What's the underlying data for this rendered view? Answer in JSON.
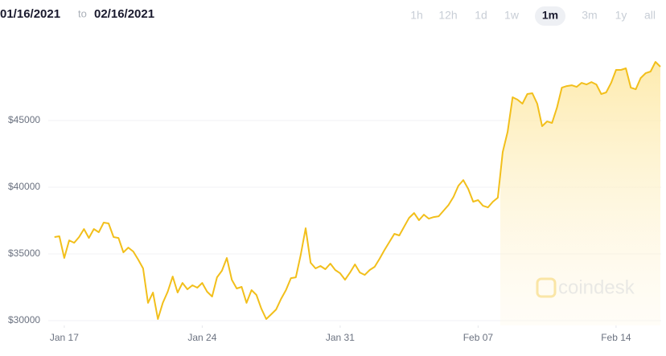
{
  "header": {
    "date_from": "01/16/2021",
    "to": "to",
    "date_to": "02/16/2021",
    "ranges": [
      "1h",
      "12h",
      "1d",
      "1w",
      "1m",
      "3m",
      "1y",
      "all"
    ],
    "selected": 4
  },
  "chart_data": {
    "type": "line",
    "watermark": "coindesk",
    "grid": true,
    "xlim": [
      16.31,
      47.29
    ],
    "ylim": [
      29640,
      51390
    ],
    "xticks": [
      {
        "value": 17,
        "label": "Jan 17"
      },
      {
        "value": 24,
        "label": "Jan 24"
      },
      {
        "value": 31,
        "label": "Jan 31"
      },
      {
        "value": 38,
        "label": "Feb 07"
      },
      {
        "value": 45,
        "label": "Feb 14"
      }
    ],
    "yticks": [
      {
        "value": 30000,
        "label": "$30000"
      },
      {
        "value": 35000,
        "label": "$35000"
      },
      {
        "value": 40000,
        "label": "$40000"
      },
      {
        "value": 45000,
        "label": "$45000"
      }
    ],
    "x": [
      16.5,
      16.75,
      17,
      17.25,
      17.5,
      17.75,
      18,
      18.25,
      18.5,
      18.75,
      19,
      19.25,
      19.5,
      19.75,
      20,
      20.25,
      20.5,
      20.75,
      21,
      21.25,
      21.5,
      21.75,
      22,
      22.25,
      22.5,
      22.75,
      23,
      23.25,
      23.5,
      23.75,
      24,
      24.25,
      24.5,
      24.75,
      25,
      25.25,
      25.5,
      25.75,
      26,
      26.25,
      26.5,
      26.75,
      27,
      27.25,
      27.5,
      27.75,
      28,
      28.25,
      28.5,
      28.75,
      29,
      29.25,
      29.5,
      29.75,
      30,
      30.25,
      30.5,
      30.75,
      31,
      31.25,
      31.5,
      31.75,
      32,
      32.25,
      32.5,
      32.75,
      33,
      33.25,
      33.5,
      33.75,
      34,
      34.25,
      34.5,
      34.75,
      35,
      35.25,
      35.5,
      35.75,
      36,
      36.25,
      36.5,
      36.75,
      37,
      37.25,
      37.5,
      37.75,
      38,
      38.25,
      38.5,
      38.75,
      39,
      39.25,
      39.5,
      39.75,
      40,
      40.25,
      40.5,
      40.75,
      41,
      41.25,
      41.5,
      41.75,
      42,
      42.25,
      42.5,
      42.75,
      43,
      43.25,
      43.5,
      43.75,
      44,
      44.25,
      44.5,
      44.75,
      45,
      45.25,
      45.5,
      45.75,
      46,
      46.25,
      46.5,
      46.75,
      47,
      47.25
    ],
    "series": [
      {
        "color": "#f2bf1b",
        "values": [
          36270,
          36330,
          34700,
          36020,
          35840,
          36270,
          36870,
          36200,
          36870,
          36630,
          37350,
          37290,
          36270,
          36200,
          35120,
          35480,
          35180,
          34580,
          33920,
          31330,
          32110,
          30120,
          31330,
          32170,
          33310,
          32110,
          32830,
          32350,
          32650,
          32470,
          32830,
          32170,
          31810,
          33250,
          33740,
          34700,
          33070,
          32410,
          32530,
          31330,
          32290,
          31930,
          30900,
          30120,
          30480,
          30840,
          31630,
          32290,
          33190,
          33250,
          34940,
          36930,
          34340,
          33920,
          34100,
          33860,
          34280,
          33800,
          33550,
          33070,
          33610,
          34220,
          33610,
          33430,
          33800,
          34040,
          34640,
          35300,
          35900,
          36510,
          36390,
          37050,
          37710,
          38070,
          37530,
          37950,
          37650,
          37770,
          37830,
          38250,
          38670,
          39280,
          40120,
          40540,
          39880,
          38920,
          39040,
          38610,
          38490,
          38920,
          39220,
          42650,
          44160,
          46750,
          46570,
          46270,
          46990,
          47050,
          46270,
          44580,
          44940,
          44820,
          45960,
          47470,
          47590,
          47650,
          47530,
          47830,
          47710,
          47890,
          47710,
          46990,
          47110,
          47830,
          48800,
          48800,
          48920,
          47470,
          47350,
          48190,
          48550,
          48680,
          49400,
          49040
        ]
      }
    ]
  }
}
